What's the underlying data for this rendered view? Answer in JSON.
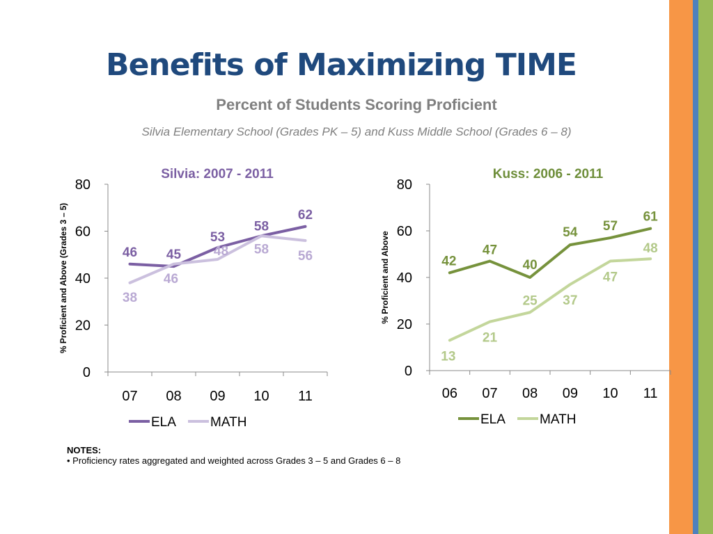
{
  "slide": {
    "title": "Benefits of Maximizing TIME",
    "subtitle": "Percent of Students Scoring Proficient",
    "caption": "Silvia Elementary School (Grades PK – 5) and Kuss Middle School (Grades 6 – 8)"
  },
  "notes": {
    "heading": "NOTES:",
    "item": "• Proficiency rates aggregated and weighted across Grades 3 – 5 and Grades 6 – 8"
  },
  "colors": {
    "title": "#1F497D",
    "orange_stripe": "#F79646",
    "blue_stripe": "#4F81BD",
    "green_stripe": "#9BBB59"
  },
  "chart_data": [
    {
      "type": "line",
      "title": "Silvia: 2007 - 2011",
      "title_color": "#7B5FA3",
      "ylabel": "% Proficient and Above (Grades 3 – 5)",
      "xlabel": "",
      "ylim": [
        0,
        80
      ],
      "yticks": [
        0,
        20,
        40,
        60,
        80
      ],
      "categories": [
        "07",
        "08",
        "09",
        "10",
        "11"
      ],
      "legend": "bottom",
      "grid": false,
      "series": [
        {
          "name": "ELA",
          "values": [
            46,
            45,
            53,
            58,
            62
          ],
          "color": "#7B5FA3",
          "label_color": "#7B5FA3"
        },
        {
          "name": "MATH",
          "values": [
            38,
            46,
            48,
            58,
            56
          ],
          "color": "#CBC0DE",
          "label_color": "#B9A9D3"
        }
      ]
    },
    {
      "type": "line",
      "title": "Kuss: 2006 - 2011",
      "title_color": "#6E8E3A",
      "ylabel": "% Proficient and Above",
      "xlabel": "",
      "ylim": [
        0,
        80
      ],
      "yticks": [
        0,
        20,
        40,
        60,
        80
      ],
      "categories": [
        "06",
        "07",
        "08",
        "09",
        "10",
        "11"
      ],
      "legend": "bottom",
      "grid": false,
      "series": [
        {
          "name": "ELA",
          "values": [
            42,
            47,
            40,
            54,
            57,
            61
          ],
          "color": "#76923C",
          "label_color": "#76923C"
        },
        {
          "name": "MATH",
          "values": [
            13,
            21,
            25,
            37,
            47,
            48
          ],
          "color": "#C3D69B",
          "label_color": "#B3C98A"
        }
      ]
    }
  ]
}
